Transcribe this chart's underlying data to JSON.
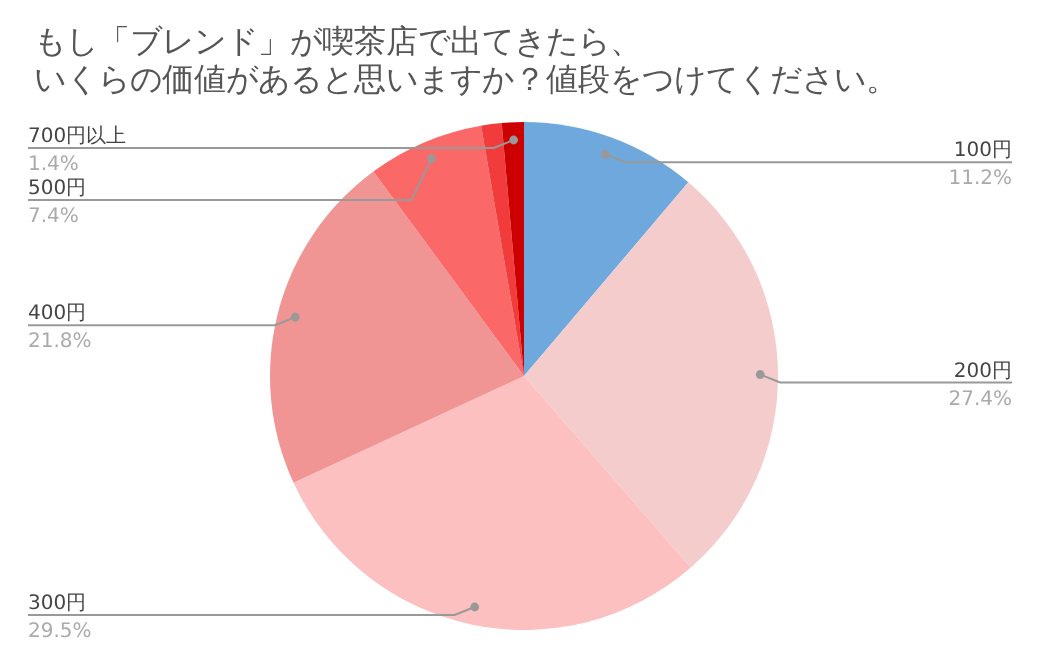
{
  "chart_data": {
    "type": "pie",
    "title": "もし「ブレンド」が喫茶店で出てきたら、いくらの価値があると思いますか？値段をつけてください。",
    "categories": [
      "100円",
      "200円",
      "300円",
      "400円",
      "500円",
      null,
      "700円以上"
    ],
    "values": [
      11.2,
      27.4,
      29.5,
      21.8,
      7.4,
      1.3,
      1.4
    ],
    "value_labels": [
      "11.2%",
      "27.4%",
      "29.5%",
      "21.8%",
      "7.4%",
      null,
      "1.4%"
    ],
    "colors": [
      "#6fa8dc",
      "#f4cccc",
      "#fcc0c0",
      "#f09494",
      "#fa6868",
      "#f23c3c",
      "#cc0000"
    ]
  }
}
